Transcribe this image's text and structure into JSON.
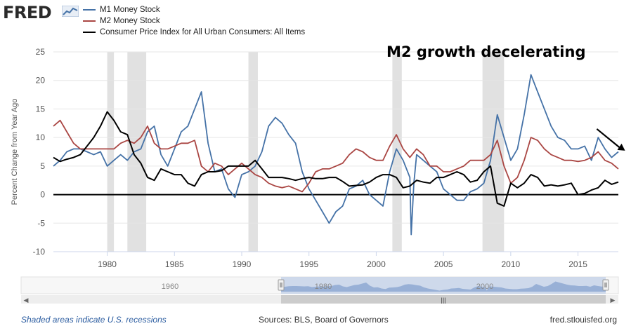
{
  "header": {
    "logo_text": "FRED",
    "logo_icon": "fred-line-chart-icon"
  },
  "annotation": {
    "text": "M2 growth decelerating",
    "arrow_icon": "down-right-arrow-icon"
  },
  "chart_data": {
    "type": "line",
    "title": "",
    "xlabel": "",
    "ylabel": "Percent Change from Year Ago",
    "xlim": [
      1976,
      2018
    ],
    "ylim": [
      -10,
      25
    ],
    "yticks": [
      -10,
      -5,
      0,
      5,
      10,
      15,
      20,
      25
    ],
    "xticks": [
      1980,
      1985,
      1990,
      1995,
      2000,
      2005,
      2010,
      2015
    ],
    "grid": "horizontal",
    "legend_position": "top-left",
    "recessions": [
      [
        1980.0,
        1980.5
      ],
      [
        1981.5,
        1982.9
      ],
      [
        1990.5,
        1991.2
      ],
      [
        2001.2,
        2001.9
      ],
      [
        2007.9,
        2009.5
      ]
    ],
    "series": [
      {
        "name": "M1 Money Stock",
        "color": "#4572a7",
        "points": [
          [
            1976,
            5
          ],
          [
            1976.5,
            6
          ],
          [
            1977,
            7.5
          ],
          [
            1977.5,
            8
          ],
          [
            1978,
            8
          ],
          [
            1978.5,
            7.5
          ],
          [
            1979,
            7
          ],
          [
            1979.5,
            7.5
          ],
          [
            1980,
            5
          ],
          [
            1980.5,
            6
          ],
          [
            1981,
            7
          ],
          [
            1981.5,
            6
          ],
          [
            1982,
            7.5
          ],
          [
            1982.5,
            8
          ],
          [
            1983,
            11
          ],
          [
            1983.5,
            12
          ],
          [
            1984,
            7
          ],
          [
            1984.5,
            5
          ],
          [
            1985,
            8
          ],
          [
            1985.5,
            11
          ],
          [
            1986,
            12
          ],
          [
            1986.5,
            15
          ],
          [
            1987,
            18
          ],
          [
            1987.5,
            9
          ],
          [
            1988,
            4
          ],
          [
            1988.5,
            4.5
          ],
          [
            1989,
            1
          ],
          [
            1989.5,
            -0.5
          ],
          [
            1990,
            3.5
          ],
          [
            1990.5,
            4
          ],
          [
            1991,
            5
          ],
          [
            1991.5,
            7.5
          ],
          [
            1992,
            12
          ],
          [
            1992.5,
            13.5
          ],
          [
            1993,
            12.5
          ],
          [
            1993.5,
            10.5
          ],
          [
            1994,
            9
          ],
          [
            1994.5,
            4
          ],
          [
            1995,
            1
          ],
          [
            1995.5,
            -1
          ],
          [
            1996,
            -3
          ],
          [
            1996.5,
            -5
          ],
          [
            1997,
            -3
          ],
          [
            1997.5,
            -2
          ],
          [
            1998,
            1
          ],
          [
            1998.5,
            1.5
          ],
          [
            1999,
            2.5
          ],
          [
            1999.5,
            0
          ],
          [
            2000,
            -1
          ],
          [
            2000.5,
            -2
          ],
          [
            2001,
            4
          ],
          [
            2001.5,
            8
          ],
          [
            2002,
            6
          ],
          [
            2002.5,
            3
          ],
          [
            2002.6,
            -7
          ],
          [
            2002.8,
            2
          ],
          [
            2003,
            7
          ],
          [
            2003.5,
            6
          ],
          [
            2004,
            5
          ],
          [
            2004.5,
            4
          ],
          [
            2005,
            1
          ],
          [
            2005.5,
            0
          ],
          [
            2006,
            -1
          ],
          [
            2006.5,
            -1
          ],
          [
            2007,
            0.5
          ],
          [
            2007.5,
            1
          ],
          [
            2008,
            2
          ],
          [
            2008.5,
            6
          ],
          [
            2009,
            14
          ],
          [
            2009.5,
            10
          ],
          [
            2010,
            6
          ],
          [
            2010.5,
            8
          ],
          [
            2011,
            14
          ],
          [
            2011.5,
            21
          ],
          [
            2012,
            18
          ],
          [
            2012.5,
            15
          ],
          [
            2013,
            12
          ],
          [
            2013.5,
            10
          ],
          [
            2014,
            9.5
          ],
          [
            2014.5,
            8
          ],
          [
            2015,
            8
          ],
          [
            2015.5,
            8.5
          ],
          [
            2016,
            6
          ],
          [
            2016.5,
            10
          ],
          [
            2017,
            8
          ],
          [
            2017.5,
            6.5
          ],
          [
            2018,
            7.5
          ]
        ]
      },
      {
        "name": "M2 Money Stock",
        "color": "#aa4643",
        "points": [
          [
            1976,
            12
          ],
          [
            1976.5,
            13
          ],
          [
            1977,
            11
          ],
          [
            1977.5,
            9
          ],
          [
            1978,
            8
          ],
          [
            1978.5,
            8
          ],
          [
            1979,
            8
          ],
          [
            1979.5,
            8
          ],
          [
            1980,
            8
          ],
          [
            1980.5,
            8
          ],
          [
            1981,
            9
          ],
          [
            1981.5,
            9.5
          ],
          [
            1982,
            9
          ],
          [
            1982.5,
            10
          ],
          [
            1983,
            12
          ],
          [
            1983.5,
            9
          ],
          [
            1984,
            8
          ],
          [
            1984.5,
            8
          ],
          [
            1985,
            8.5
          ],
          [
            1985.5,
            9
          ],
          [
            1986,
            9
          ],
          [
            1986.5,
            9.5
          ],
          [
            1987,
            5
          ],
          [
            1987.5,
            4
          ],
          [
            1988,
            5.5
          ],
          [
            1988.5,
            5
          ],
          [
            1989,
            3.5
          ],
          [
            1989.5,
            4.5
          ],
          [
            1990,
            5.5
          ],
          [
            1990.5,
            4.5
          ],
          [
            1991,
            3.5
          ],
          [
            1991.5,
            3
          ],
          [
            1992,
            2
          ],
          [
            1992.5,
            1.5
          ],
          [
            1993,
            1.2
          ],
          [
            1993.5,
            1.5
          ],
          [
            1994,
            1
          ],
          [
            1994.5,
            0.5
          ],
          [
            1995,
            2
          ],
          [
            1995.5,
            4
          ],
          [
            1996,
            4.5
          ],
          [
            1996.5,
            4.5
          ],
          [
            1997,
            5
          ],
          [
            1997.5,
            5.5
          ],
          [
            1998,
            7
          ],
          [
            1998.5,
            8
          ],
          [
            1999,
            7.5
          ],
          [
            1999.5,
            6.5
          ],
          [
            2000,
            6
          ],
          [
            2000.5,
            6
          ],
          [
            2001,
            8.5
          ],
          [
            2001.5,
            10.5
          ],
          [
            2002,
            8
          ],
          [
            2002.5,
            6.5
          ],
          [
            2003,
            8
          ],
          [
            2003.5,
            7
          ],
          [
            2004,
            5
          ],
          [
            2004.5,
            5
          ],
          [
            2005,
            4
          ],
          [
            2005.5,
            4
          ],
          [
            2006,
            4.5
          ],
          [
            2006.5,
            5
          ],
          [
            2007,
            6
          ],
          [
            2007.5,
            6
          ],
          [
            2008,
            6
          ],
          [
            2008.5,
            7
          ],
          [
            2009,
            9.5
          ],
          [
            2009.5,
            5
          ],
          [
            2010,
            2
          ],
          [
            2010.5,
            3
          ],
          [
            2011,
            6
          ],
          [
            2011.5,
            10
          ],
          [
            2012,
            9.5
          ],
          [
            2012.5,
            8
          ],
          [
            2013,
            7
          ],
          [
            2013.5,
            6.5
          ],
          [
            2014,
            6
          ],
          [
            2014.5,
            6
          ],
          [
            2015,
            5.8
          ],
          [
            2015.5,
            6
          ],
          [
            2016,
            6.5
          ],
          [
            2016.5,
            7.5
          ],
          [
            2017,
            6
          ],
          [
            2017.5,
            5.5
          ],
          [
            2018,
            4.5
          ]
        ]
      },
      {
        "name": "Consumer Price Index for All Urban Consumers: All Items",
        "color": "#000000",
        "points": [
          [
            1976,
            6.5
          ],
          [
            1976.5,
            5.8
          ],
          [
            1977,
            6.2
          ],
          [
            1977.5,
            6.5
          ],
          [
            1978,
            7
          ],
          [
            1978.5,
            8.5
          ],
          [
            1979,
            10
          ],
          [
            1979.5,
            12
          ],
          [
            1980,
            14.5
          ],
          [
            1980.5,
            13
          ],
          [
            1981,
            11
          ],
          [
            1981.5,
            10.5
          ],
          [
            1982,
            7
          ],
          [
            1982.5,
            5.5
          ],
          [
            1983,
            3
          ],
          [
            1983.5,
            2.5
          ],
          [
            1984,
            4.5
          ],
          [
            1984.5,
            4
          ],
          [
            1985,
            3.5
          ],
          [
            1985.5,
            3.5
          ],
          [
            1986,
            2
          ],
          [
            1986.5,
            1.5
          ],
          [
            1987,
            3.5
          ],
          [
            1987.5,
            4
          ],
          [
            1988,
            4
          ],
          [
            1988.5,
            4.2
          ],
          [
            1989,
            5
          ],
          [
            1989.5,
            5
          ],
          [
            1990,
            5
          ],
          [
            1990.5,
            5
          ],
          [
            1991,
            6
          ],
          [
            1991.5,
            4.5
          ],
          [
            1992,
            3
          ],
          [
            1992.5,
            3
          ],
          [
            1993,
            3
          ],
          [
            1993.5,
            2.8
          ],
          [
            1994,
            2.5
          ],
          [
            1994.5,
            2.8
          ],
          [
            1995,
            3
          ],
          [
            1995.5,
            2.8
          ],
          [
            1996,
            2.8
          ],
          [
            1996.5,
            3
          ],
          [
            1997,
            3
          ],
          [
            1997.5,
            2.3
          ],
          [
            1998,
            1.5
          ],
          [
            1998.5,
            1.6
          ],
          [
            1999,
            1.7
          ],
          [
            1999.5,
            2.2
          ],
          [
            2000,
            3
          ],
          [
            2000.5,
            3.5
          ],
          [
            2001,
            3.5
          ],
          [
            2001.5,
            3
          ],
          [
            2002,
            1.2
          ],
          [
            2002.5,
            1.5
          ],
          [
            2003,
            2.5
          ],
          [
            2003.5,
            2.2
          ],
          [
            2004,
            2
          ],
          [
            2004.5,
            3
          ],
          [
            2005,
            3
          ],
          [
            2005.5,
            3.5
          ],
          [
            2006,
            4
          ],
          [
            2006.5,
            3.5
          ],
          [
            2007,
            2.2
          ],
          [
            2007.5,
            2.5
          ],
          [
            2008,
            4
          ],
          [
            2008.5,
            5
          ],
          [
            2009,
            -1.5
          ],
          [
            2009.5,
            -2
          ],
          [
            2010,
            2
          ],
          [
            2010.5,
            1.2
          ],
          [
            2011,
            2
          ],
          [
            2011.5,
            3.5
          ],
          [
            2012,
            3
          ],
          [
            2012.5,
            1.5
          ],
          [
            2013,
            1.7
          ],
          [
            2013.5,
            1.5
          ],
          [
            2014,
            1.7
          ],
          [
            2014.5,
            2
          ],
          [
            2015,
            0
          ],
          [
            2015.5,
            0.2
          ],
          [
            2016,
            0.8
          ],
          [
            2016.5,
            1.2
          ],
          [
            2017,
            2.5
          ],
          [
            2017.5,
            1.8
          ],
          [
            2018,
            2.2
          ]
        ]
      }
    ]
  },
  "navigator": {
    "range_labels": [
      "1960",
      "1980",
      "2000"
    ],
    "scroll_grip": "|||",
    "left_arrow": "◀",
    "right_arrow": "▶"
  },
  "footer": {
    "recession_note": "Shaded areas indicate U.S. recessions",
    "sources": "Sources: BLS, Board of Governors",
    "site": "fred.stlouisfed.org"
  }
}
